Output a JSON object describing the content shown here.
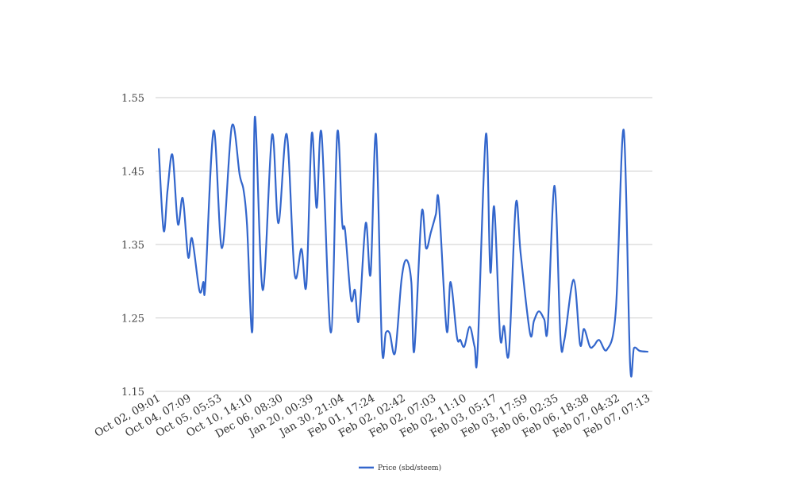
{
  "chart_data": {
    "type": "line",
    "title": "",
    "xlabel": "",
    "ylabel": "",
    "ylim": [
      1.15,
      1.55
    ],
    "yticks": [
      "1.15",
      "1.25",
      "1.35",
      "1.45",
      "1.55"
    ],
    "xlim": [
      0,
      100
    ],
    "grid": true,
    "legend_position": "bottom",
    "x_tick_labels": [
      "Oct 02, 09:01",
      "Oct 04, 07:09",
      "Oct 05, 05:53",
      "Oct 10, 14:10",
      "Dec 06, 08:30",
      "Jan 20, 00:39",
      "Jan 30, 21:04",
      "Feb 01, 17:24",
      "Feb 02, 02:42",
      "Feb 02, 07:03",
      "Feb 02, 11:10",
      "Feb 03, 05:17",
      "Feb 03, 17:59",
      "Feb 06, 02:35",
      "Feb 06, 18:38",
      "Feb 07, 04:32",
      "Feb 07, 07:13"
    ],
    "series": [
      {
        "name": "Price (sbd/steem)",
        "color": "#3366cc",
        "points": [
          [
            0,
            1.481
          ],
          [
            1.0,
            1.369
          ],
          [
            1.8,
            1.424
          ],
          [
            2.8,
            1.472
          ],
          [
            3.9,
            1.378
          ],
          [
            4.9,
            1.413
          ],
          [
            6.0,
            1.333
          ],
          [
            6.8,
            1.358
          ],
          [
            8.3,
            1.287
          ],
          [
            9.1,
            1.299
          ],
          [
            9.5,
            1.295
          ],
          [
            11.2,
            1.505
          ],
          [
            12.9,
            1.345
          ],
          [
            14.9,
            1.511
          ],
          [
            16.5,
            1.445
          ],
          [
            17.3,
            1.424
          ],
          [
            18.0,
            1.377
          ],
          [
            19.1,
            1.233
          ],
          [
            19.6,
            1.524
          ],
          [
            21.2,
            1.288
          ],
          [
            23.1,
            1.499
          ],
          [
            24.4,
            1.379
          ],
          [
            26.1,
            1.5
          ],
          [
            27.7,
            1.31
          ],
          [
            29.1,
            1.344
          ],
          [
            30.1,
            1.295
          ],
          [
            31.2,
            1.501
          ],
          [
            32.2,
            1.4
          ],
          [
            33.2,
            1.501
          ],
          [
            35.1,
            1.23
          ],
          [
            36.4,
            1.502
          ],
          [
            37.4,
            1.38
          ],
          [
            38.0,
            1.369
          ],
          [
            39.2,
            1.276
          ],
          [
            40.0,
            1.288
          ],
          [
            40.8,
            1.247
          ],
          [
            42.2,
            1.379
          ],
          [
            43.2,
            1.31
          ],
          [
            44.3,
            1.5
          ],
          [
            45.5,
            1.212
          ],
          [
            46.3,
            1.23
          ],
          [
            47.1,
            1.229
          ],
          [
            48.2,
            1.203
          ],
          [
            49.5,
            1.302
          ],
          [
            50.5,
            1.329
          ],
          [
            51.5,
            1.299
          ],
          [
            52.1,
            1.205
          ],
          [
            53.6,
            1.393
          ],
          [
            54.5,
            1.345
          ],
          [
            55.5,
            1.367
          ],
          [
            56.5,
            1.391
          ],
          [
            57.1,
            1.408
          ],
          [
            58.7,
            1.233
          ],
          [
            59.5,
            1.299
          ],
          [
            60.8,
            1.224
          ],
          [
            61.5,
            1.22
          ],
          [
            62.3,
            1.211
          ],
          [
            63.4,
            1.238
          ],
          [
            64.4,
            1.211
          ],
          [
            65.0,
            1.203
          ],
          [
            66.7,
            1.5
          ],
          [
            67.6,
            1.313
          ],
          [
            68.4,
            1.401
          ],
          [
            69.6,
            1.225
          ],
          [
            70.4,
            1.239
          ],
          [
            71.4,
            1.203
          ],
          [
            72.8,
            1.405
          ],
          [
            73.8,
            1.337
          ],
          [
            75.7,
            1.229
          ],
          [
            76.5,
            1.246
          ],
          [
            77.5,
            1.259
          ],
          [
            78.6,
            1.248
          ],
          [
            79.3,
            1.237
          ],
          [
            80.7,
            1.43
          ],
          [
            81.9,
            1.224
          ],
          [
            82.7,
            1.22
          ],
          [
            84.6,
            1.302
          ],
          [
            85.9,
            1.214
          ],
          [
            86.7,
            1.235
          ],
          [
            87.9,
            1.211
          ],
          [
            88.7,
            1.212
          ],
          [
            89.8,
            1.22
          ],
          [
            91.4,
            1.207
          ],
          [
            93.2,
            1.261
          ],
          [
            94.8,
            1.506
          ],
          [
            96.1,
            1.188
          ],
          [
            96.9,
            1.209
          ],
          [
            98.1,
            1.205
          ],
          [
            99.8,
            1.204
          ]
        ]
      }
    ]
  }
}
